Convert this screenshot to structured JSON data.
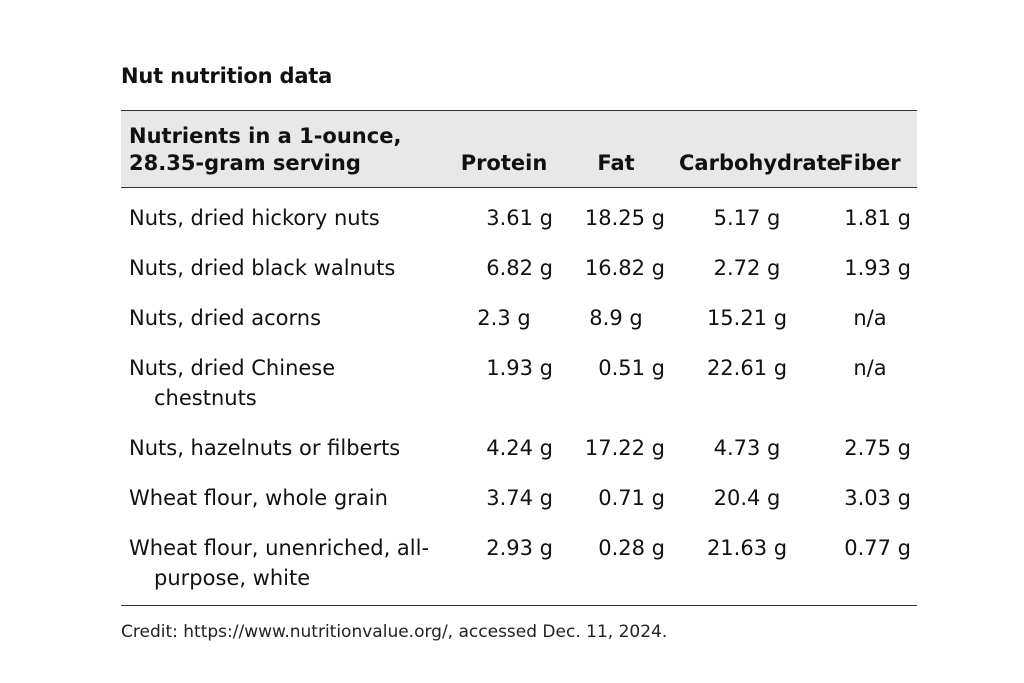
{
  "title": "Nut nutrition data",
  "columns": [
    "Nutrients in a 1-ounce, 28.35-gram serving",
    "Protein",
    "Fat",
    "Carbohydrate",
    "Fiber"
  ],
  "rows": [
    {
      "name": "Nuts, dried hickory nuts",
      "protein": "3.61 g",
      "fat": "18.25 g",
      "carbohydrate": "5.17 g",
      "fiber": "1.81 g"
    },
    {
      "name": "Nuts, dried black walnuts",
      "protein": "6.82 g",
      "fat": "16.82 g",
      "carbohydrate": "2.72 g",
      "fiber": "1.93 g"
    },
    {
      "name": "Nuts, dried acorns",
      "protein": "2.3 g",
      "fat": "8.9 g",
      "carbohydrate": "15.21 g",
      "fiber": "n/a"
    },
    {
      "name": "Nuts, dried Chinese chestnuts",
      "protein": "1.93 g",
      "fat": "0.51 g",
      "carbohydrate": "22.61 g",
      "fiber": "n/a"
    },
    {
      "name": "Nuts, hazelnuts or filberts",
      "protein": "4.24 g",
      "fat": "17.22 g",
      "carbohydrate": "4.73 g",
      "fiber": "2.75 g"
    },
    {
      "name": "Wheat flour, whole grain",
      "protein": "3.74 g",
      "fat": "0.71 g",
      "carbohydrate": "20.4 g",
      "fiber": "3.03 g"
    },
    {
      "name": "Wheat flour, unenriched, all-purpose, white",
      "protein": "2.93 g",
      "fat": "0.28 g",
      "carbohydrate": "21.63 g",
      "fiber": "0.77 g"
    }
  ],
  "credit": "Credit: https://www.nutritionvalue.org/, accessed Dec. 11, 2024."
}
